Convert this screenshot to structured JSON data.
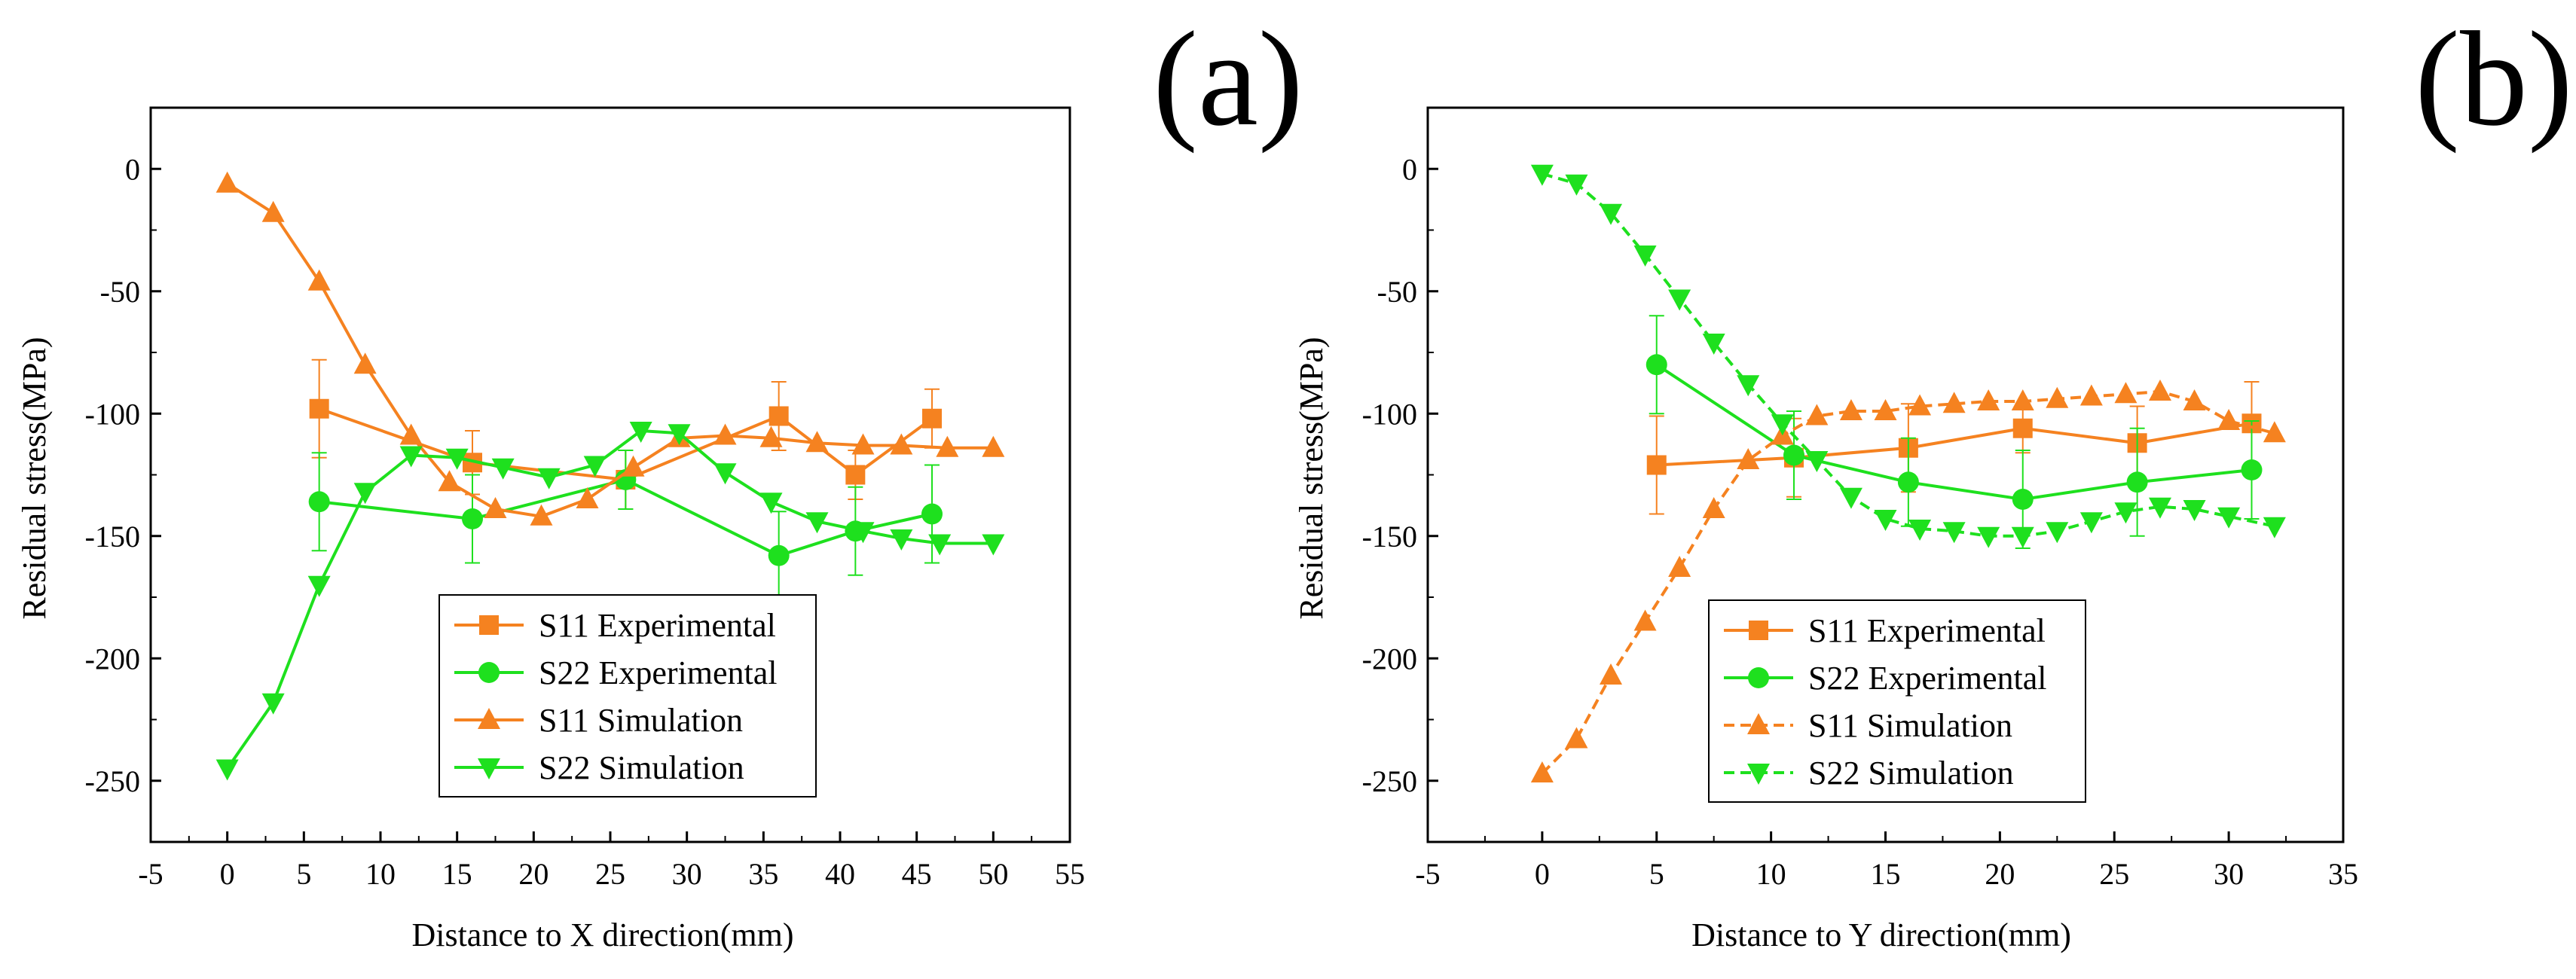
{
  "colors": {
    "orange": "#f58220",
    "green": "#1ee01e",
    "axis": "#000000"
  },
  "chart_data": [
    {
      "panel": "(a)",
      "type": "line",
      "xlabel": "Distance to X direction(mm)",
      "ylabel": "Residual stress(MPa)",
      "xlim": [
        -5,
        55
      ],
      "ylim": [
        -275,
        25
      ],
      "xticks": [
        "-5",
        "0",
        "5",
        "10",
        "15",
        "20",
        "25",
        "30",
        "35",
        "40",
        "45",
        "50",
        "55"
      ],
      "yticks": [
        "0",
        "-50",
        "-100",
        "-150",
        "-200",
        "-250"
      ],
      "legend": {
        "placement": "bottom-center"
      },
      "series": [
        {
          "name": "S11 Experimental",
          "color": "#f58220",
          "marker": "square",
          "dashed": false,
          "x": [
            6,
            16,
            26,
            36,
            41,
            46
          ],
          "y": [
            -98,
            -120,
            -127,
            -101,
            -125,
            -102
          ],
          "err": [
            20,
            13,
            12,
            14,
            10,
            12
          ]
        },
        {
          "name": "S22 Experimental",
          "color": "#1ee01e",
          "marker": "circle",
          "dashed": false,
          "x": [
            6,
            16,
            26,
            36,
            41,
            46
          ],
          "y": [
            -136,
            -143,
            -127,
            -158,
            -148,
            -141
          ],
          "err": [
            20,
            18,
            12,
            18,
            18,
            20
          ]
        },
        {
          "name": "S11 Simulation",
          "color": "#f58220",
          "marker": "triangle-up",
          "dashed": false,
          "x": [
            0,
            3,
            6,
            9,
            12,
            14.5,
            17.5,
            20.5,
            23.5,
            26.5,
            29.5,
            32.5,
            35.5,
            38.5,
            41.5,
            44,
            47,
            50
          ],
          "y": [
            -6,
            -18,
            -46,
            -80,
            -109,
            -128,
            -139,
            -142,
            -135,
            -122,
            -110,
            -109,
            -110,
            -112,
            -113,
            -113,
            -114,
            -114
          ],
          "err": []
        },
        {
          "name": "S22 Simulation",
          "color": "#1ee01e",
          "marker": "triangle-down",
          "dashed": false,
          "x": [
            0,
            3,
            6,
            9,
            12,
            15,
            18,
            21,
            24,
            27,
            29.5,
            32.5,
            35.5,
            38.5,
            41.5,
            44,
            46.5,
            50
          ],
          "y": [
            -245,
            -218,
            -170,
            -132,
            -117,
            -118,
            -122,
            -126,
            -121,
            -107,
            -108,
            -124,
            -136,
            -144,
            -148,
            -151,
            -153,
            -153
          ],
          "err": []
        }
      ]
    },
    {
      "panel": "(b)",
      "type": "line",
      "xlabel": "Distance to Y direction(mm)",
      "ylabel": "Residual stress(MPa)",
      "xlim": [
        -5,
        35
      ],
      "ylim": [
        -275,
        25
      ],
      "xticks": [
        "-5",
        "0",
        "5",
        "10",
        "15",
        "20",
        "25",
        "30",
        "35"
      ],
      "yticks": [
        "0",
        "-50",
        "-100",
        "-150",
        "-200",
        "-250"
      ],
      "legend": {
        "placement": "bottom-right"
      },
      "series": [
        {
          "name": "S11 Experimental",
          "color": "#f58220",
          "marker": "square",
          "dashed": false,
          "x": [
            5,
            11,
            16,
            21,
            26,
            31
          ],
          "y": [
            -121,
            -118,
            -114,
            -106,
            -112,
            -104
          ],
          "err": [
            20,
            16,
            18,
            10,
            15,
            17
          ]
        },
        {
          "name": "S22 Experimental",
          "color": "#1ee01e",
          "marker": "circle",
          "dashed": false,
          "x": [
            5,
            11,
            16,
            21,
            26,
            31
          ],
          "y": [
            -80,
            -117,
            -128,
            -135,
            -128,
            -123
          ],
          "err": [
            20,
            18,
            18,
            20,
            22,
            20
          ]
        },
        {
          "name": "S11 Simulation",
          "color": "#f58220",
          "marker": "triangle-up",
          "dashed": true,
          "x": [
            0,
            1.5,
            3,
            4.5,
            6,
            7.5,
            9,
            10.5,
            12,
            13.5,
            15,
            16.5,
            18,
            19.5,
            21,
            22.5,
            24,
            25.5,
            27,
            28.5,
            30,
            32
          ],
          "y": [
            -247,
            -233,
            -207,
            -185,
            -163,
            -139,
            -119,
            -109,
            -101,
            -99,
            -99,
            -97,
            -96,
            -95,
            -95,
            -94,
            -93,
            -92,
            -91,
            -95,
            -103,
            -108
          ],
          "err": []
        },
        {
          "name": "S22 Simulation",
          "color": "#1ee01e",
          "marker": "triangle-down",
          "dashed": true,
          "x": [
            0,
            1.5,
            3,
            4.5,
            6,
            7.5,
            9,
            10.5,
            12,
            13.5,
            15,
            16.5,
            18,
            19.5,
            21,
            22.5,
            24,
            25.5,
            27,
            28.5,
            30,
            32
          ],
          "y": [
            -2,
            -6,
            -18,
            -35,
            -53,
            -71,
            -88,
            -104,
            -119,
            -134,
            -143,
            -147,
            -148,
            -150,
            -150,
            -148,
            -144,
            -140,
            -138,
            -139,
            -142,
            -146
          ],
          "err": []
        }
      ]
    }
  ]
}
